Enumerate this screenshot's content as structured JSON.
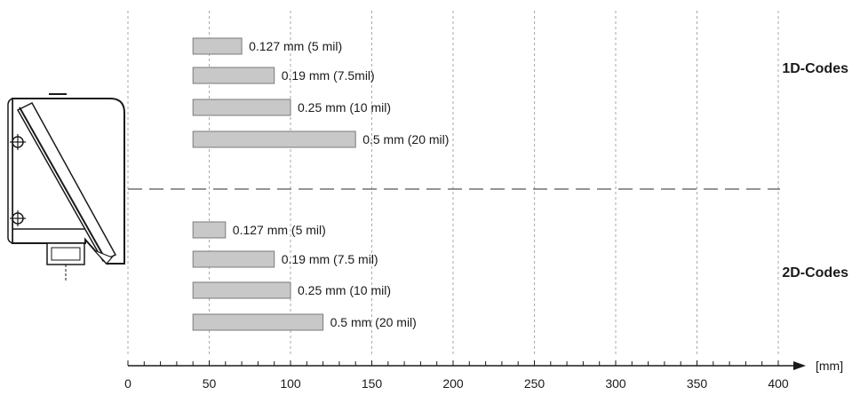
{
  "chart_data": {
    "type": "bar",
    "orientation": "horizontal",
    "xlabel": "[mm]",
    "xlim": [
      0,
      400
    ],
    "x_ticks": [
      0,
      50,
      100,
      150,
      200,
      250,
      300,
      350,
      400
    ],
    "x_tick_labels": [
      "0",
      "50",
      "100",
      "150",
      "200",
      "250",
      "300",
      "350",
      "400"
    ],
    "grid": true,
    "groups": [
      {
        "name": "1D-Codes",
        "bars": [
          {
            "label": "0.127 mm (5 mil)",
            "start": 40,
            "end": 70
          },
          {
            "label": "0.19 mm (7.5mil)",
            "start": 40,
            "end": 90
          },
          {
            "label": "0.25 mm (10 mil)",
            "start": 40,
            "end": 100
          },
          {
            "label": "0.5 mm (20 mil)",
            "start": 40,
            "end": 140
          }
        ]
      },
      {
        "name": "2D-Codes",
        "bars": [
          {
            "label": "0.127 mm (5 mil)",
            "start": 40,
            "end": 60
          },
          {
            "label": "0.19 mm (7.5 mil)",
            "start": 40,
            "end": 90
          },
          {
            "label": "0.25 mm (10 mil)",
            "start": 40,
            "end": 100
          },
          {
            "label": "0.5 mm (20 mil)",
            "start": 40,
            "end": 120
          }
        ]
      }
    ],
    "colors": {
      "bar_fill": "#c8c8c8",
      "bar_stroke": "#7a7a7a",
      "grid": "#aaaaaa",
      "axis": "#1a1a1a"
    }
  },
  "device": {
    "icon": "barcode-scanner-icon"
  }
}
